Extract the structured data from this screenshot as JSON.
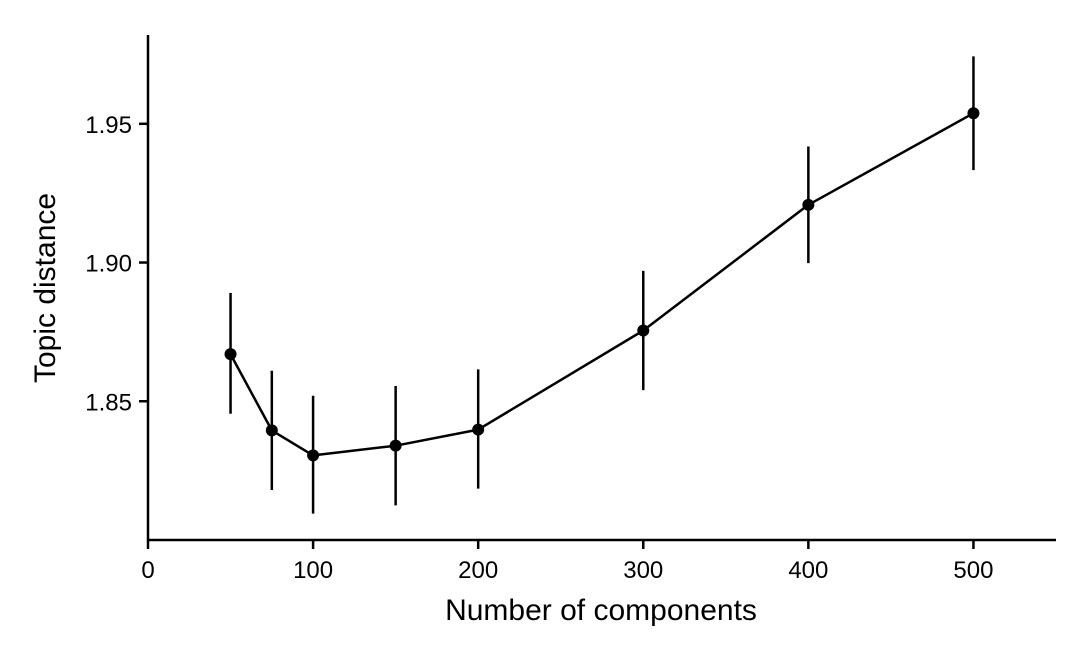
{
  "chart_data": {
    "type": "line",
    "title": "",
    "xlabel": "Number of components",
    "ylabel": "Topic distance",
    "xlim": [
      0,
      550
    ],
    "ylim": [
      1.8,
      1.982
    ],
    "x_ticks": [
      0,
      100,
      200,
      300,
      400,
      500
    ],
    "x_tick_labels": [
      "0",
      "100",
      "200",
      "300",
      "400",
      "500"
    ],
    "y_ticks": [
      1.85,
      1.9,
      1.95
    ],
    "y_tick_labels": [
      "1.85",
      "1.90",
      "1.95"
    ],
    "grid": false,
    "legend": "none",
    "colors": {
      "line": "#000000",
      "marker": "#000000",
      "errorbar": "#000000"
    },
    "series": [
      {
        "x": [
          50,
          75,
          100,
          150,
          200,
          300,
          400,
          500
        ],
        "y": [
          1.867,
          1.8395,
          1.8305,
          1.834,
          1.8398,
          1.8755,
          1.9208,
          1.9538
        ],
        "y_low": [
          1.8455,
          1.818,
          1.8095,
          1.8125,
          1.8185,
          1.854,
          1.8998,
          1.9333
        ],
        "y_high": [
          1.889,
          1.861,
          1.852,
          1.8555,
          1.8615,
          1.897,
          1.9418,
          1.9743
        ]
      }
    ]
  }
}
